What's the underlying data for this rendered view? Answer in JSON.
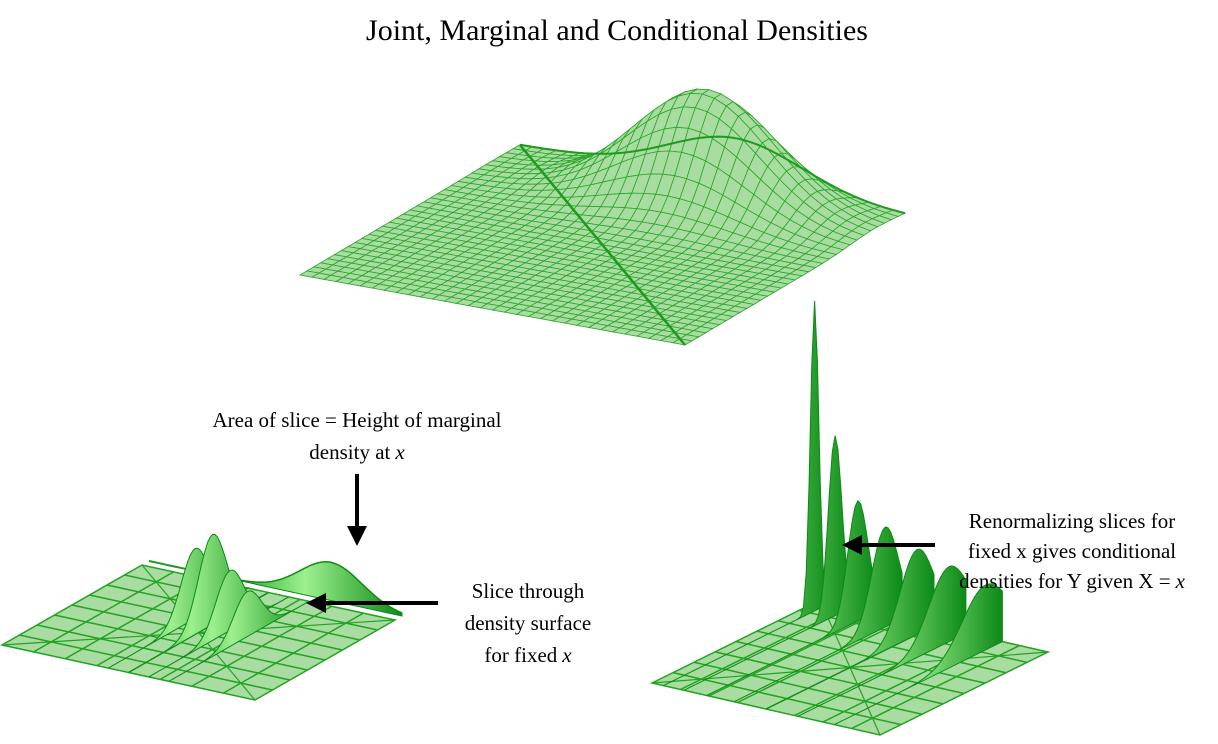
{
  "title": "Joint, Marginal and Conditional Densities",
  "annotations": [
    {
      "lines": [
        [
          "Area of slice = Height of marginal"
        ],
        [
          "density at",
          "x"
        ]
      ]
    },
    {
      "lines": [
        [
          "Slice through"
        ],
        [
          "density surface"
        ],
        [
          "for fixed",
          "x"
        ]
      ]
    },
    {
      "lines": [
        [
          "Renormalizing slices for"
        ],
        [
          "fixed x gives conditional"
        ],
        [
          "densities for Y given X =",
          "x"
        ]
      ]
    }
  ]
}
